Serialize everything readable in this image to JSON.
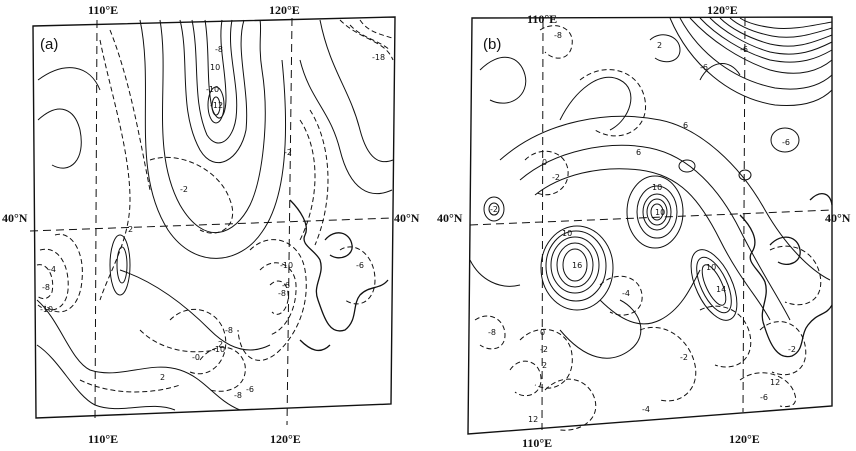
{
  "panels": [
    {
      "tag": "(a)",
      "top_lon_left": "110°E",
      "top_lon_right": "120°E",
      "bottom_lon_left": "110°E",
      "bottom_lon_right": "120°E",
      "lat_left": "40°N",
      "lat_right": "40°N",
      "contour_labels": [
        "-8",
        "-10",
        "10",
        "-12",
        "-18",
        "-2",
        "2",
        "-2",
        "-10",
        "-6",
        "-4",
        "-8",
        "-10",
        "-6",
        "-10",
        "-8",
        "-8",
        "2",
        "-8",
        "-0",
        "2",
        "-6"
      ]
    },
    {
      "tag": "(b)",
      "top_lon_left": "110°E",
      "top_lon_right": "120°E",
      "bottom_lon_left": "110°E",
      "bottom_lon_right": "120°E",
      "lat_left": "40°N",
      "lat_right": "40°N",
      "contour_labels": [
        "-8",
        "2",
        "-6",
        "-6",
        "6",
        "-2",
        "0",
        "6",
        "-6",
        "10",
        "10",
        "-2",
        "10",
        "16",
        "10",
        "14",
        "-4",
        "-8",
        "0",
        "-2",
        "2",
        "-2",
        "12",
        "-2",
        "12",
        "-4",
        "-6"
      ]
    }
  ]
}
